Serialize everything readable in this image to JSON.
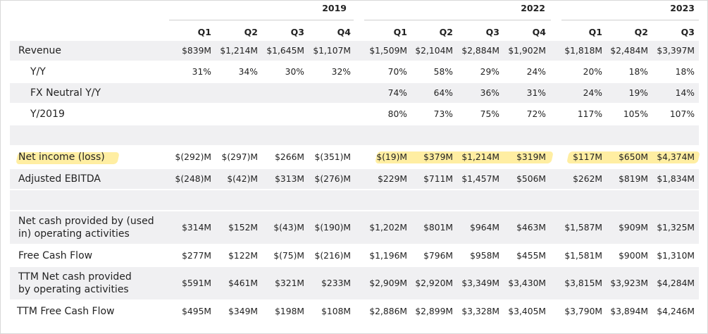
{
  "header": {
    "years": [
      "2019",
      "2022",
      "2023"
    ],
    "quarters": [
      "Q1",
      "Q2",
      "Q3",
      "Q4",
      "Q1",
      "Q2",
      "Q3",
      "Q4",
      "Q1",
      "Q2",
      "Q3"
    ]
  },
  "rows": [
    {
      "label": "Revenue",
      "values": [
        "$839M",
        "$1,214M",
        "$1,645M",
        "$1,107M",
        "$1,509M",
        "$2,104M",
        "$2,884M",
        "$1,902M",
        "$1,818M",
        "$2,484M",
        "$3,397M"
      ]
    },
    {
      "label": "Y/Y",
      "values": [
        "31%",
        "34%",
        "30%",
        "32%",
        "70%",
        "58%",
        "29%",
        "24%",
        "20%",
        "18%",
        "18%"
      ]
    },
    {
      "label": "FX Neutral Y/Y",
      "values": [
        "",
        "",
        "",
        "",
        "74%",
        "64%",
        "36%",
        "31%",
        "24%",
        "19%",
        "14%"
      ]
    },
    {
      "label": "Y/2019",
      "values": [
        "",
        "",
        "",
        "",
        "80%",
        "73%",
        "75%",
        "72%",
        "117%",
        "105%",
        "107%"
      ]
    },
    {
      "label": "Net income (loss)",
      "values": [
        "$(292)M",
        "$(297)M",
        "$266M",
        "$(351)M",
        "$(19)M",
        "$379M",
        "$1,214M",
        "$319M",
        "$117M",
        "$650M",
        "$4,374M"
      ]
    },
    {
      "label": "Adjusted EBITDA",
      "values": [
        "$(248)M",
        "$(42)M",
        "$313M",
        "$(276)M",
        "$229M",
        "$711M",
        "$1,457M",
        "$506M",
        "$262M",
        "$819M",
        "$1,834M"
      ]
    },
    {
      "label_lines": [
        "Net cash provided by (used",
        "in) operating activities"
      ],
      "values": [
        "$314M",
        "$152M",
        "$(43)M",
        "$(190)M",
        "$1,202M",
        "$801M",
        "$964M",
        "$463M",
        "$1,587M",
        "$909M",
        "$1,325M"
      ]
    },
    {
      "label": "Free Cash Flow",
      "values": [
        "$277M",
        "$122M",
        "$(75)M",
        "$(216)M",
        "$1,196M",
        "$796M",
        "$958M",
        "$455M",
        "$1,581M",
        "$900M",
        "$1,310M"
      ]
    },
    {
      "label_lines": [
        "TTM Net cash provided",
        "by operating activities"
      ],
      "values": [
        "$591M",
        "$461M",
        "$321M",
        "$233M",
        "$2,909M",
        "$2,920M",
        "$3,349M",
        "$3,430M",
        "$3,815M",
        "$3,923M",
        "$4,284M"
      ]
    },
    {
      "label": "TTM Free Cash Flow",
      "values": [
        "$495M",
        "$349M",
        "$198M",
        "$108M",
        "$2,886M",
        "$2,899M",
        "$3,328M",
        "$3,405M",
        "$3,790M",
        "$3,894M",
        "$4,246M"
      ]
    }
  ],
  "highlight_colors": {
    "net_income": "#ffe264",
    "adjusted_ebitda": "#ec5880"
  }
}
